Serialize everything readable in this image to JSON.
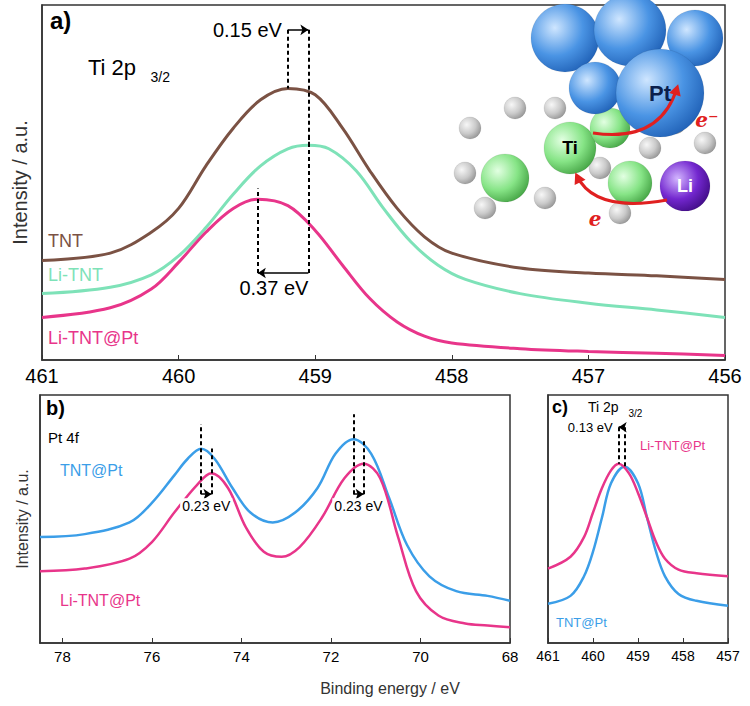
{
  "chart_data": [
    {
      "type": "line",
      "panel_label": "a)",
      "title": "Ti 2p",
      "title_subscript": "3/2",
      "ylabel": "Intensity / a.u.",
      "xlim": [
        461,
        456
      ],
      "xticks": [
        461,
        460,
        459,
        458,
        457,
        456
      ],
      "ylim": [
        0,
        10
      ],
      "grid": false,
      "tick_labels": "x",
      "series": [
        {
          "name": "TNT",
          "color": "#7b5244",
          "x": [
            461,
            460.5,
            460.2,
            460,
            459.8,
            459.6,
            459.4,
            459.2,
            459,
            458.8,
            458.6,
            458.4,
            458.2,
            458,
            457.5,
            457,
            456.5,
            456
          ],
          "values": [
            2.8,
            3.01,
            3.6,
            4.27,
            5.47,
            6.53,
            7.33,
            7.65,
            7.47,
            6.53,
            5.33,
            4.27,
            3.47,
            3.01,
            2.59,
            2.45,
            2.37,
            2.27
          ]
        },
        {
          "name": "Li-TNT",
          "color": "#7ee2b8",
          "x": [
            461,
            460.5,
            460.2,
            460,
            459.8,
            459.6,
            459.4,
            459.2,
            459.05,
            458.9,
            458.7,
            458.5,
            458.3,
            458.1,
            457.9,
            457.5,
            457,
            456.5,
            456
          ],
          "values": [
            1.87,
            2.05,
            2.4,
            2.93,
            3.73,
            4.67,
            5.47,
            5.95,
            6.05,
            5.95,
            5.33,
            4.27,
            3.33,
            2.67,
            2.27,
            1.87,
            1.6,
            1.41,
            1.2
          ]
        },
        {
          "name": "Li-TNT@Pt",
          "color": "#e8358a",
          "x": [
            461,
            460.5,
            460.2,
            460,
            459.8,
            459.6,
            459.42,
            459.2,
            459,
            458.8,
            458.6,
            458.4,
            458.2,
            458,
            457.5,
            457,
            456.5,
            456
          ],
          "values": [
            1.2,
            1.47,
            2.0,
            2.75,
            3.6,
            4.27,
            4.53,
            4.35,
            3.65,
            2.67,
            1.73,
            1.07,
            0.67,
            0.48,
            0.32,
            0.24,
            0.19,
            0.13
          ]
        }
      ],
      "annotations": [
        {
          "text": "0.15 eV",
          "from": "TNT",
          "to": "Li-TNT"
        },
        {
          "text": "0.37 eV",
          "from": "Li-TNT",
          "to": "Li-TNT@Pt"
        }
      ],
      "inset_labels": [
        "Pt",
        "Ti",
        "Li",
        "e",
        "e⁻"
      ]
    },
    {
      "type": "line",
      "panel_label": "b)",
      "title": "Pt 4f",
      "ylabel": "Intensity / a.u.",
      "xlabel": "Binding energy / eV",
      "xlim": [
        78.5,
        68
      ],
      "xticks": [
        78,
        76,
        74,
        72,
        70,
        68
      ],
      "ylim": [
        0,
        10
      ],
      "grid": false,
      "tick_labels": "x",
      "series": [
        {
          "name": "TNT@Pt",
          "color": "#3b9ee8",
          "x": [
            78.5,
            77.5,
            76.5,
            76,
            75.5,
            75.2,
            74.9,
            74.6,
            74.2,
            73.8,
            73.3,
            72.8,
            72.3,
            71.9,
            71.5,
            71.1,
            70.7,
            70.3,
            69.8,
            69.2,
            68.5,
            68
          ],
          "values": [
            4.27,
            4.39,
            4.86,
            5.65,
            6.76,
            7.43,
            7.83,
            7.43,
            6.25,
            5.26,
            4.86,
            5.26,
            6.25,
            7.63,
            8.22,
            7.63,
            5.85,
            3.95,
            2.69,
            2.09,
            1.9,
            1.7
          ]
        },
        {
          "name": "Li-TNT@Pt",
          "color": "#e8358a",
          "x": [
            78.5,
            77.5,
            76.5,
            76,
            75.5,
            75,
            74.67,
            74.3,
            73.9,
            73.5,
            73.1,
            72.7,
            72.2,
            71.7,
            71.27,
            70.9,
            70.5,
            70.1,
            69.6,
            69,
            68.5,
            68
          ],
          "values": [
            2.89,
            3.0,
            3.4,
            4.07,
            5.26,
            6.36,
            6.84,
            6.25,
            4.66,
            3.68,
            3.48,
            3.87,
            5.06,
            6.64,
            7.23,
            6.64,
            4.27,
            2.09,
            1.11,
            0.79,
            0.71,
            0.63
          ]
        }
      ],
      "annotations": [
        {
          "text": "0.23 eV",
          "from": "TNT@Pt",
          "to": "Li-TNT@Pt"
        },
        {
          "text": "0.23 eV",
          "from": "TNT@Pt",
          "to": "Li-TNT@Pt"
        }
      ]
    },
    {
      "type": "line",
      "panel_label": "c)",
      "title": "Ti 2p",
      "title_subscript": "3/2",
      "xlim": [
        461,
        457
      ],
      "xticks": [
        461,
        460,
        459,
        458,
        457
      ],
      "ylim": [
        0,
        10
      ],
      "grid": false,
      "tick_labels": "x",
      "series": [
        {
          "name": "TNT@Pt",
          "color": "#3b9ee8",
          "x": [
            461,
            460.5,
            460.2,
            460,
            459.8,
            459.6,
            459.3,
            459,
            458.8,
            458.6,
            458.4,
            458.1,
            457.7,
            457
          ],
          "values": [
            1.58,
            1.9,
            2.69,
            3.68,
            5.06,
            6.44,
            7.11,
            6.44,
            5.06,
            3.68,
            2.69,
            1.98,
            1.7,
            1.5
          ]
        },
        {
          "name": "Li-TNT@Pt",
          "color": "#e8358a",
          "x": [
            461,
            460.5,
            460.2,
            460,
            459.8,
            459.6,
            459.43,
            459.2,
            459,
            458.8,
            458.6,
            458.4,
            458.1,
            457.7,
            457
          ],
          "values": [
            3.0,
            3.48,
            4.27,
            5.26,
            6.25,
            6.96,
            7.23,
            6.84,
            6.05,
            5.06,
            4.07,
            3.4,
            2.96,
            2.81,
            2.69
          ]
        }
      ],
      "annotations": [
        {
          "text": "0.13 eV",
          "from": "TNT@Pt",
          "to": "Li-TNT@Pt"
        }
      ]
    }
  ]
}
